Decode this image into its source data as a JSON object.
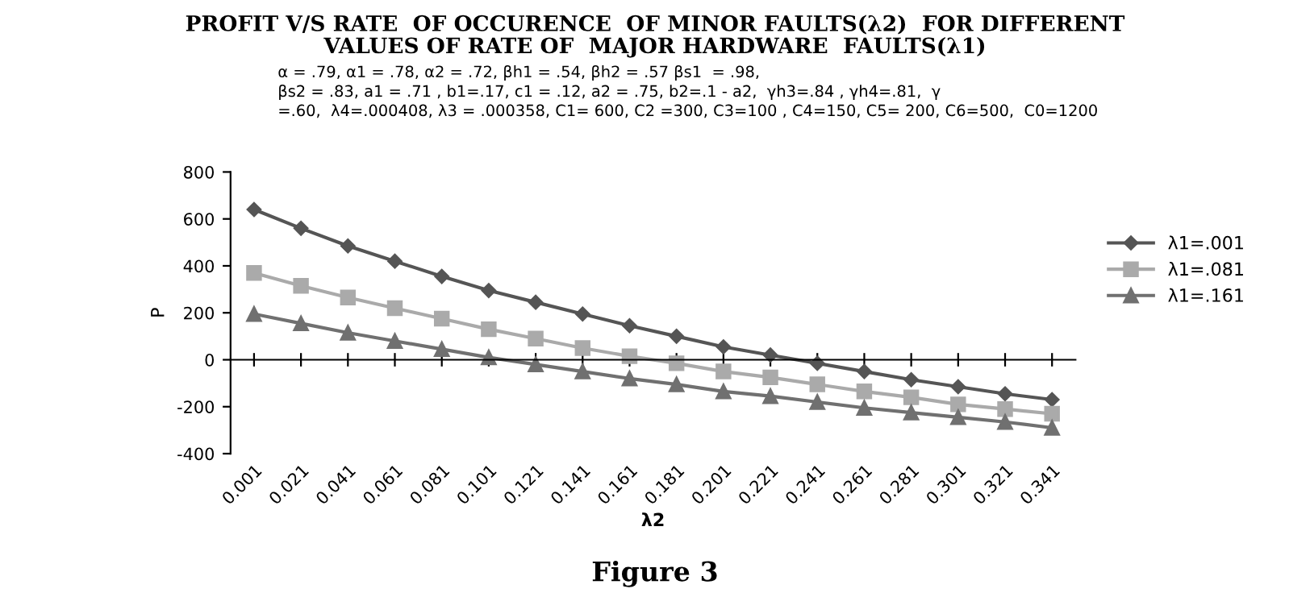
{
  "chart_data": {
    "type": "line",
    "title": "PROFIT V/S RATE  OF OCCURENCE  OF MINOR FAULTS(λ2)  FOR DIFFERENT\nVALUES OF RATE OF  MAJOR HARDWARE  FAULTS(λ1)",
    "xlabel": "λ2",
    "ylabel": "P",
    "annotations": [
      "α = .79, α1 = .78, α2 = .72, βh1 = .54, βh2 = .57 βs1  = .98,\nβs2 = .83, a1 = .71 , b1=.17, c1 = .12, a2 = .75, b2=.1 - a2,  γh3=.84 , γh4=.81,  γ\n=.60,  λ4=.000408, λ3 = .000358, C1= 600, C2 =300, C3=100 , C4=150, C5= 200, C6=500,  C0=1200",
      "Figure 3"
    ],
    "categories": [
      "0.001",
      "0.021",
      "0.041",
      "0.061",
      "0.081",
      "0.101",
      "0.121",
      "0.141",
      "0.161",
      "0.181",
      "0.201",
      "0.221",
      "0.241",
      "0.261",
      "0.281",
      "0.301",
      "0.321",
      "0.341"
    ],
    "series": [
      {
        "name": "λ1=.001",
        "color": "#555555",
        "marker": "diamond",
        "values": [
          640,
          560,
          485,
          420,
          355,
          295,
          245,
          195,
          145,
          100,
          55,
          20,
          -15,
          -50,
          -85,
          -115,
          -145,
          -170
        ]
      },
      {
        "name": "λ1=.081",
        "color": "#aaaaaa",
        "marker": "square",
        "values": [
          370,
          315,
          265,
          220,
          175,
          130,
          90,
          50,
          15,
          -15,
          -50,
          -75,
          -105,
          -135,
          -160,
          -190,
          -210,
          -230
        ]
      },
      {
        "name": "λ1=.161",
        "color": "#707070",
        "marker": "triangle",
        "values": [
          195,
          155,
          115,
          80,
          45,
          10,
          -20,
          -50,
          -80,
          -105,
          -135,
          -155,
          -180,
          -205,
          -225,
          -245,
          -265,
          -290
        ]
      }
    ],
    "ylim": [
      -400,
      800
    ],
    "yticks": [
      -400,
      -200,
      0,
      200,
      400,
      600,
      800
    ],
    "legend": "right"
  }
}
